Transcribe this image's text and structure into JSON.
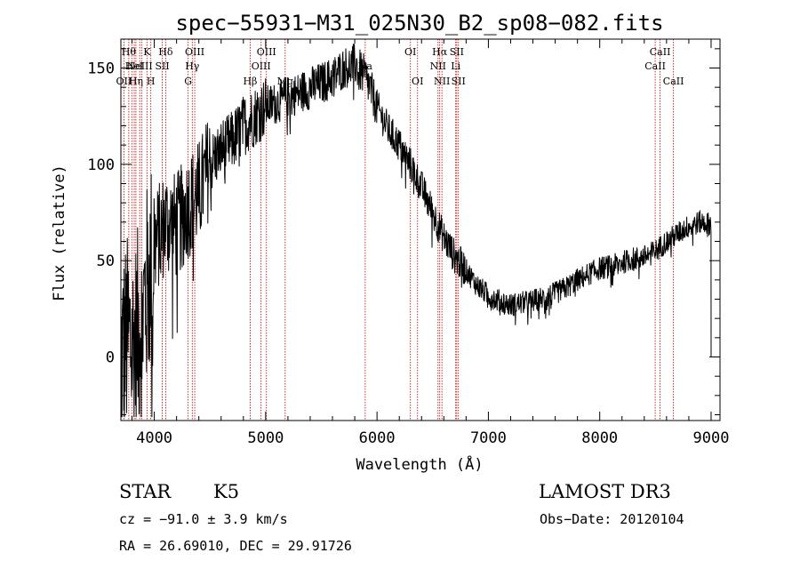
{
  "chart_data": {
    "type": "line",
    "title": "spec−55931−M31_025N30_B2_sp08−082.fits",
    "xlabel": "Wavelength (Å)",
    "ylabel": "Flux (relative)",
    "xlim": [
      3700,
      9080
    ],
    "ylim": [
      -33,
      165
    ],
    "xticks": [
      4000,
      5000,
      6000,
      7000,
      8000,
      9000
    ],
    "yticks": [
      0,
      50,
      100,
      150
    ],
    "xtick_labels": [
      "4000",
      "5000",
      "6000",
      "7000",
      "8000",
      "9000"
    ],
    "ytick_labels": [
      "0",
      "50",
      "100",
      "150"
    ],
    "series": [
      {
        "name": "spectrum",
        "continuum_anchors": [
          [
            3700,
            0
          ],
          [
            3760,
            10
          ],
          [
            3820,
            5
          ],
          [
            3900,
            25
          ],
          [
            3950,
            40
          ],
          [
            4000,
            58
          ],
          [
            4100,
            70
          ],
          [
            4200,
            68
          ],
          [
            4300,
            78
          ],
          [
            4400,
            85
          ],
          [
            4500,
            100
          ],
          [
            4600,
            108
          ],
          [
            4700,
            112
          ],
          [
            4800,
            120
          ],
          [
            4900,
            125
          ],
          [
            5000,
            130
          ],
          [
            5100,
            132
          ],
          [
            5200,
            135
          ],
          [
            5300,
            137
          ],
          [
            5400,
            140
          ],
          [
            5500,
            142
          ],
          [
            5600,
            145
          ],
          [
            5700,
            150
          ],
          [
            5800,
            152
          ],
          [
            5900,
            145
          ],
          [
            6000,
            130
          ],
          [
            6100,
            118
          ],
          [
            6200,
            110
          ],
          [
            6300,
            100
          ],
          [
            6400,
            88
          ],
          [
            6500,
            75
          ],
          [
            6600,
            62
          ],
          [
            6700,
            52
          ],
          [
            6800,
            45
          ],
          [
            6900,
            37
          ],
          [
            7000,
            32
          ],
          [
            7100,
            29
          ],
          [
            7200,
            27
          ],
          [
            7300,
            28
          ],
          [
            7400,
            29
          ],
          [
            7500,
            31
          ],
          [
            7600,
            33
          ],
          [
            7700,
            36
          ],
          [
            7800,
            40
          ],
          [
            7900,
            43
          ],
          [
            8000,
            46
          ],
          [
            8100,
            47
          ],
          [
            8200,
            49
          ],
          [
            8300,
            51
          ],
          [
            8400,
            52
          ],
          [
            8500,
            55
          ],
          [
            8600,
            60
          ],
          [
            8700,
            64
          ],
          [
            8800,
            68
          ],
          [
            8900,
            70
          ],
          [
            9000,
            69
          ]
        ]
      }
    ],
    "lines": [
      {
        "wl": 3727,
        "label": "OII",
        "row": 3
      },
      {
        "wl": 3771,
        "label": "Hθ",
        "row": 1
      },
      {
        "wl": 3798,
        "label": "",
        "row": 0
      },
      {
        "wl": 3820,
        "label": "HeI",
        "row": 2
      },
      {
        "wl": 3835,
        "label": "Hη",
        "row": 3
      },
      {
        "wl": 3869,
        "label": "NeIII",
        "row": 2
      },
      {
        "wl": 3889,
        "label": "",
        "row": 0
      },
      {
        "wl": 3934,
        "label": "K",
        "row": 1
      },
      {
        "wl": 3969,
        "label": "H",
        "row": 3
      },
      {
        "wl": 4072,
        "label": "SII",
        "row": 2
      },
      {
        "wl": 4102,
        "label": "Hδ",
        "row": 1
      },
      {
        "wl": 4304,
        "label": "G",
        "row": 3
      },
      {
        "wl": 4341,
        "label": "Hγ",
        "row": 2
      },
      {
        "wl": 4363,
        "label": "OIII",
        "row": 1
      },
      {
        "wl": 4861,
        "label": "Hβ",
        "row": 3
      },
      {
        "wl": 4959,
        "label": "OIII",
        "row": 2
      },
      {
        "wl": 5007,
        "label": "OIII",
        "row": 1
      },
      {
        "wl": 5175,
        "label": "Mg",
        "row": 3
      },
      {
        "wl": 5894,
        "label": "Na",
        "row": 2
      },
      {
        "wl": 6300,
        "label": "OI",
        "row": 1
      },
      {
        "wl": 6364,
        "label": "OI",
        "row": 3
      },
      {
        "wl": 6548,
        "label": "NII",
        "row": 2
      },
      {
        "wl": 6563,
        "label": "Hα",
        "row": 1
      },
      {
        "wl": 6583,
        "label": "NII",
        "row": 3
      },
      {
        "wl": 6707,
        "label": "Li",
        "row": 2
      },
      {
        "wl": 6716,
        "label": "SII",
        "row": 1
      },
      {
        "wl": 6731,
        "label": "SII",
        "row": 3
      },
      {
        "wl": 8498,
        "label": "CaII",
        "row": 2
      },
      {
        "wl": 8542,
        "label": "CaII",
        "row": 1
      },
      {
        "wl": 8662,
        "label": "CaII",
        "row": 3
      }
    ]
  },
  "info": {
    "object_class": "STAR",
    "subclass": "K5",
    "survey": "LAMOST DR3",
    "redshift_line": "cz = −91.0 ± 3.9 km/s",
    "obs_date_line": "Obs−Date: 20120104",
    "coords_line": "RA =  26.69010, DEC =  29.91726"
  }
}
